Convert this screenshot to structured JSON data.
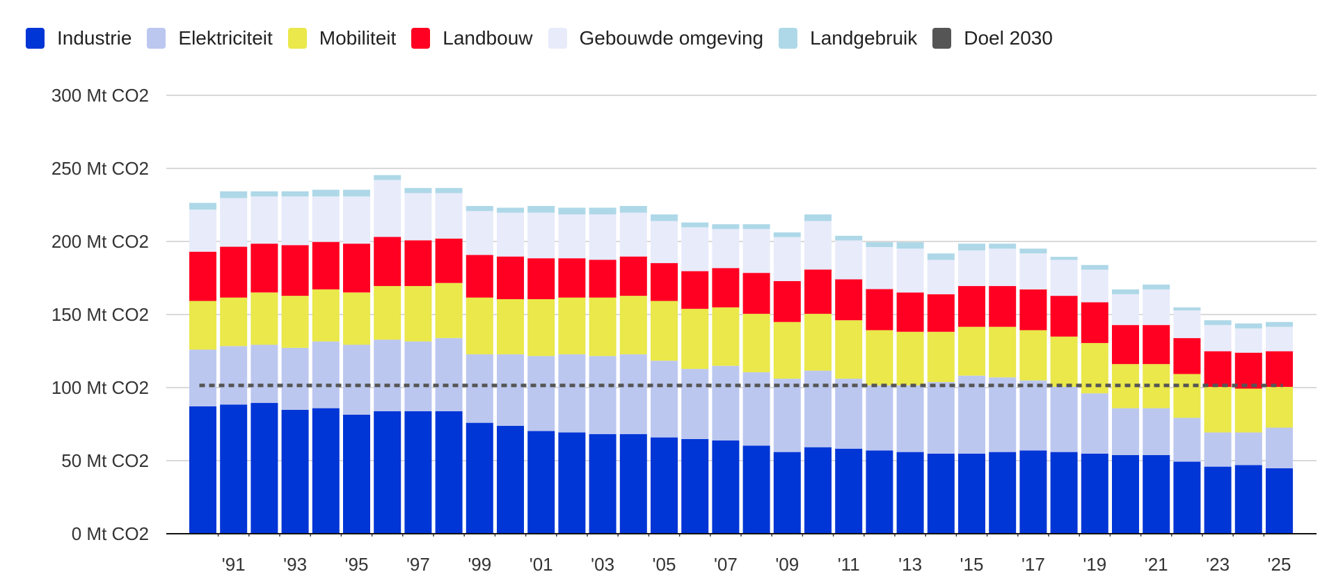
{
  "chart_data": {
    "type": "bar",
    "stacked": true,
    "categories": [
      "1990",
      "1991",
      "1992",
      "1993",
      "1994",
      "1995",
      "1996",
      "1997",
      "1998",
      "1999",
      "2000",
      "2001",
      "2002",
      "2003",
      "2004",
      "2005",
      "2006",
      "2007",
      "2008",
      "2009",
      "2010",
      "2011",
      "2012",
      "2013",
      "2014",
      "2015",
      "2016",
      "2017",
      "2018",
      "2019",
      "2020",
      "2021",
      "2022",
      "2023",
      "2024",
      "2025"
    ],
    "x_tick_labels": [
      "'91",
      "'93",
      "'95",
      "'97",
      "'99",
      "'01",
      "'03",
      "'05",
      "'07",
      "'09",
      "'11",
      "'13",
      "'15",
      "'17",
      "'19",
      "'21",
      "'23",
      "'25"
    ],
    "x_tick_years": [
      "1991",
      "1993",
      "1995",
      "1997",
      "1999",
      "2001",
      "2003",
      "2005",
      "2007",
      "2009",
      "2011",
      "2013",
      "2015",
      "2017",
      "2019",
      "2021",
      "2023",
      "2025"
    ],
    "y_tick_labels": [
      "0 Mt CO2",
      "50 Mt CO2",
      "100 Mt CO2",
      "150 Mt CO2",
      "200 Mt CO2",
      "250 Mt CO2",
      "300 Mt CO2"
    ],
    "y_ticks": [
      0,
      50,
      100,
      150,
      200,
      250,
      300
    ],
    "ylim": [
      0,
      300
    ],
    "grid": true,
    "legend_position": "top-left",
    "series": [
      {
        "name": "Industrie",
        "color": "#0035d6",
        "values": [
          87.2,
          88.4,
          89.5,
          84.8,
          85.9,
          81.5,
          83.8,
          83.8,
          83.8,
          75.9,
          73.8,
          70.3,
          69.3,
          68.2,
          68.2,
          65.9,
          64.8,
          63.8,
          60.3,
          55.9,
          59.2,
          58.2,
          57.0,
          55.9,
          54.8,
          54.8,
          55.9,
          57.0,
          55.9,
          54.8,
          53.8,
          53.8,
          49.3,
          45.9,
          47.0,
          44.8
        ]
      },
      {
        "name": "Elektriciteit",
        "color": "#bcc7f0",
        "values": [
          38.8,
          40.0,
          39.8,
          42.4,
          45.7,
          47.8,
          49.0,
          47.8,
          50.1,
          46.9,
          49.0,
          51.3,
          53.5,
          53.4,
          54.6,
          52.5,
          48.0,
          51.1,
          50.2,
          50.2,
          52.4,
          47.9,
          44.6,
          45.7,
          49.0,
          53.4,
          51.1,
          47.9,
          44.6,
          41.3,
          32.1,
          32.1,
          30.0,
          23.4,
          22.3,
          27.8
        ]
      },
      {
        "name": "Mobiliteit",
        "color": "#eae84a",
        "values": [
          33.3,
          33.2,
          35.8,
          35.6,
          35.6,
          35.8,
          36.7,
          37.9,
          37.7,
          38.8,
          37.7,
          38.9,
          38.8,
          40.0,
          40.0,
          40.9,
          41.1,
          40.0,
          40.0,
          38.8,
          38.9,
          40.0,
          37.7,
          36.6,
          34.4,
          33.4,
          34.6,
          34.4,
          34.4,
          34.4,
          30.2,
          30.2,
          30.0,
          31.2,
          30.0,
          27.9
        ]
      },
      {
        "name": "Landbouw",
        "color": "#ff0022",
        "values": [
          33.7,
          34.8,
          33.4,
          34.7,
          32.5,
          33.4,
          33.6,
          31.3,
          30.4,
          29.2,
          29.2,
          28.0,
          26.9,
          25.9,
          26.9,
          25.9,
          25.8,
          26.9,
          28.0,
          28.0,
          30.3,
          28.0,
          28.1,
          26.9,
          25.7,
          27.9,
          27.9,
          27.9,
          27.9,
          27.9,
          26.7,
          26.7,
          24.6,
          24.4,
          24.6,
          24.4
        ]
      },
      {
        "name": "Gebouwde omgeving",
        "color": "#e8ebfa",
        "values": [
          28.8,
          33.3,
          32.3,
          33.3,
          31.1,
          32.3,
          39.0,
          32.3,
          31.1,
          30.0,
          30.0,
          31.2,
          30.0,
          31.0,
          30.0,
          28.8,
          30.0,
          26.7,
          30.0,
          30.1,
          33.2,
          26.6,
          28.8,
          30.0,
          23.5,
          24.4,
          25.6,
          24.6,
          24.6,
          22.3,
          21.1,
          24.4,
          18.9,
          17.9,
          16.6,
          16.7
        ]
      },
      {
        "name": "Landgebruik",
        "color": "#aed8e8",
        "values": [
          4.6,
          4.6,
          3.5,
          3.5,
          4.6,
          4.6,
          3.3,
          3.5,
          3.5,
          3.5,
          3.4,
          4.6,
          4.6,
          4.6,
          4.6,
          4.5,
          3.3,
          3.3,
          3.3,
          3.2,
          4.5,
          3.2,
          3.3,
          4.4,
          4.4,
          4.6,
          3.4,
          3.3,
          2.1,
          3.2,
          3.3,
          3.3,
          2.1,
          3.3,
          3.4,
          3.3
        ]
      }
    ],
    "target_line": {
      "name": "Doel 2030",
      "color": "#555555",
      "value": 101.5
    }
  }
}
